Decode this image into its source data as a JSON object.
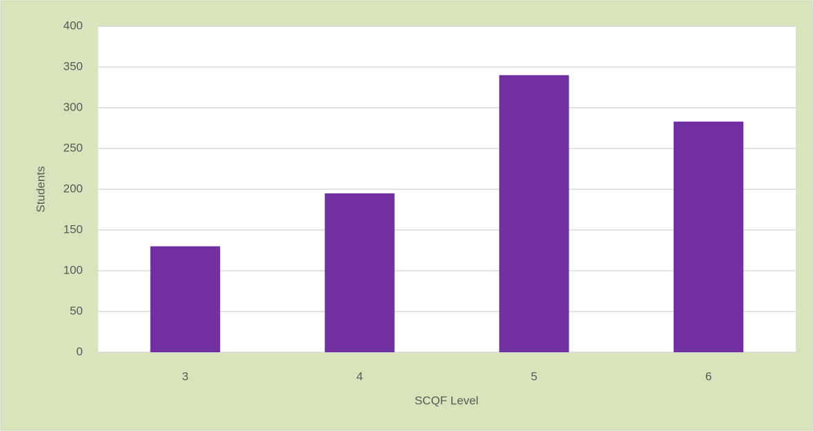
{
  "chart_data": {
    "type": "bar",
    "x_label": "SCQF Level",
    "y_label": "Students",
    "categories": [
      "3",
      "4",
      "5",
      "6"
    ],
    "values": [
      130,
      195,
      340,
      283
    ],
    "color": "#7030a0",
    "ylim": [
      0,
      400
    ],
    "yticks": [
      0,
      50,
      100,
      150,
      200,
      250,
      300,
      350,
      400
    ],
    "grid": true
  }
}
